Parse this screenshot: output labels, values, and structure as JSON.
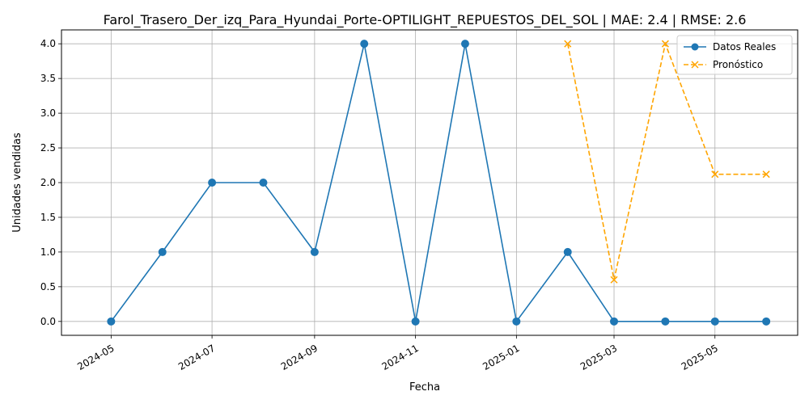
{
  "chart_data": {
    "type": "line",
    "title": "Farol_Trasero_Der_izq_Para_Hyundai_Porte-OPTILIGHT_REPUESTOS_DEL_SOL | MAE: 2.4 | RMSE: 2.6",
    "xlabel": "Fecha",
    "ylabel": "Unidades vendidas",
    "x_ticks": [
      "2024-05",
      "2024-07",
      "2024-09",
      "2024-11",
      "2025-01",
      "2025-03",
      "2025-05"
    ],
    "y_ticks": [
      "0.0",
      "0.5",
      "1.0",
      "1.5",
      "2.0",
      "2.5",
      "3.0",
      "3.5",
      "4.0"
    ],
    "ylim": [
      -0.2,
      4.2
    ],
    "xlim": [
      "2024-04-01",
      "2025-06-20"
    ],
    "grid": true,
    "legend_position": "top-right",
    "series": [
      {
        "name": "Datos Reales",
        "color": "#1f77b4",
        "marker": "circle",
        "line_style": "solid",
        "x": [
          "2024-05-01",
          "2024-06-01",
          "2024-07-01",
          "2024-08-01",
          "2024-09-01",
          "2024-10-01",
          "2024-11-01",
          "2024-12-01",
          "2025-01-01",
          "2025-02-01",
          "2025-03-01",
          "2025-04-01",
          "2025-05-01",
          "2025-06-01"
        ],
        "values": [
          0,
          1,
          2,
          2,
          1,
          4,
          0,
          4,
          0,
          1,
          0,
          0,
          0,
          0
        ]
      },
      {
        "name": "Pronóstico",
        "color": "#ffa500",
        "marker": "x",
        "line_style": "dashed",
        "x": [
          "2025-02-01",
          "2025-03-01",
          "2025-04-01",
          "2025-05-01",
          "2025-06-01"
        ],
        "values": [
          4.0,
          0.6,
          4.0,
          2.12,
          2.12
        ]
      }
    ]
  }
}
